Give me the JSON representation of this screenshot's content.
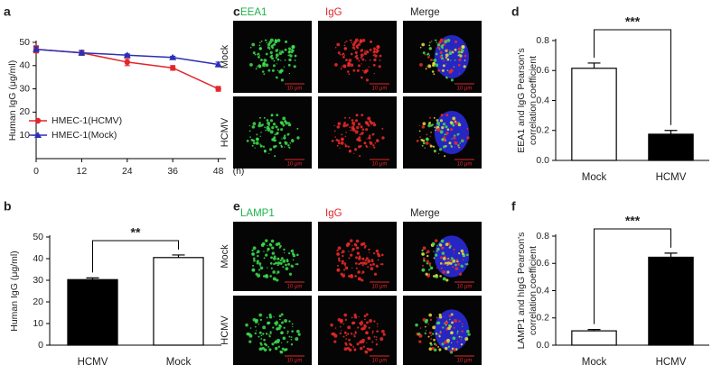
{
  "chart_data": [
    {
      "panel": "a",
      "type": "line",
      "ylabel": [
        "Human IgG (μg/ml)"
      ],
      "x": [
        0,
        12,
        24,
        36,
        48
      ],
      "x_unit": "(h)",
      "xlim": [
        0,
        50
      ],
      "xticks": [
        0,
        12,
        24,
        36,
        48
      ],
      "ylim": [
        0,
        50
      ],
      "yticks": [
        10,
        20,
        30,
        40,
        50
      ],
      "legend": "lower left",
      "series": [
        {
          "name": "HMEC-1(HCMV)",
          "color": "#e3262b",
          "marker": "circle",
          "values": [
            47,
            45.5,
            41.5,
            39,
            30
          ],
          "errors": [
            1.5,
            1,
            1.5,
            1,
            1
          ]
        },
        {
          "name": "HMEC-1(Mock)",
          "color": "#2b2fb5",
          "marker": "triangle",
          "values": [
            47,
            45.5,
            44.5,
            43.5,
            40.5
          ],
          "errors": [
            1,
            1,
            0.5,
            0.5,
            1
          ]
        }
      ]
    },
    {
      "panel": "b",
      "type": "bar",
      "ylabel": [
        "Human IgG (μg/ml)"
      ],
      "categories": [
        "HCMV",
        "Mock"
      ],
      "values": [
        30.3,
        40.5
      ],
      "errors": [
        0.8,
        1.2
      ],
      "bar_colors": [
        "#000000",
        "#ffffff"
      ],
      "edge_color": "#000000",
      "ylim": [
        0,
        50
      ],
      "yticks": [
        0,
        10,
        20,
        30,
        40,
        50
      ],
      "significance": "**"
    },
    {
      "panel": "d",
      "type": "bar",
      "ylabel": [
        "EEA1 and IgG  Pearson's",
        "correlation coefficient"
      ],
      "categories": [
        "Mock",
        "HCMV"
      ],
      "values": [
        0.615,
        0.175
      ],
      "errors": [
        0.035,
        0.025
      ],
      "bar_colors": [
        "#ffffff",
        "#000000"
      ],
      "edge_color": "#000000",
      "ylim": [
        0,
        0.8
      ],
      "yticks": [
        {
          "value": 0,
          "label": "0.0"
        },
        0.2,
        0.4,
        0.6,
        0.8
      ],
      "significance": "***"
    },
    {
      "panel": "f",
      "type": "bar",
      "ylabel": [
        "LAMP1 and hIgG  Pearson's",
        "correlation coefficient"
      ],
      "categories": [
        "Mock",
        "HCMV"
      ],
      "values": [
        0.105,
        0.645
      ],
      "errors": [
        0.01,
        0.03
      ],
      "bar_colors": [
        "#ffffff",
        "#000000"
      ],
      "edge_color": "#000000",
      "ylim": [
        0,
        0.8
      ],
      "yticks": [
        {
          "value": 0,
          "label": "0.0"
        },
        0.2,
        0.4,
        0.6,
        0.8
      ],
      "significance": "***"
    }
  ],
  "image_panels": [
    {
      "panel": "c",
      "columns": [
        "EEA1",
        "IgG",
        "Merge"
      ],
      "column_colors": [
        "#1db34a",
        "#e3262b",
        "#222222"
      ],
      "rows": [
        "Mock",
        "HCMV"
      ],
      "scale_label": "10 μm"
    },
    {
      "panel": "e",
      "columns": [
        "LAMP1",
        "IgG",
        "Merge"
      ],
      "column_colors": [
        "#1db34a",
        "#e3262b",
        "#222222"
      ],
      "rows": [
        "Mock",
        "HCMV"
      ],
      "scale_label": "10 μm"
    }
  ]
}
